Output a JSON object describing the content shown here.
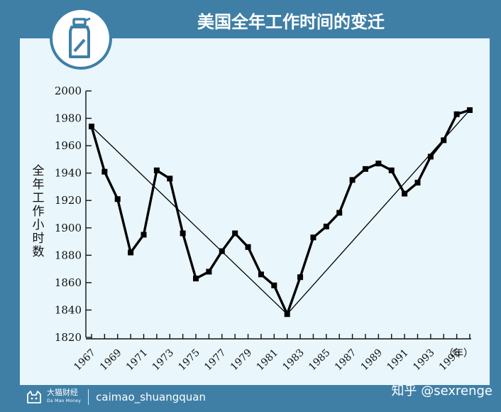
{
  "header": {
    "title": "美国全年工作时间的变迁",
    "badge_icon": "spray-bottle-icon"
  },
  "footer": {
    "brand_name": "大猫财经",
    "brand_sub": "Da Mao Money",
    "handle": "caimao_shuangquan",
    "watermark": "知乎 @sexrenge",
    "logo_icon": "cat-logo-icon"
  },
  "colors": {
    "frame": "#3f7fa6",
    "panel": "#e9f6fb",
    "line": "#000000"
  },
  "chart_data": {
    "type": "line",
    "title": "美国全年工作时间的变迁",
    "ylabel": "全年工作小时数",
    "xlabel": "（年）",
    "ylim": [
      1820,
      2000
    ],
    "yticks": [
      1820,
      1840,
      1860,
      1880,
      1900,
      1920,
      1940,
      1960,
      1980,
      2000
    ],
    "xlim": [
      1967,
      1996
    ],
    "xtick_labels": [
      "1967",
      "1969",
      "1971",
      "1973",
      "1975",
      "1977",
      "1979",
      "1981",
      "1983",
      "1985",
      "1987",
      "1989",
      "1991",
      "1993",
      "1995"
    ],
    "grid": false,
    "series": [
      {
        "x": [
          1967,
          1968,
          1969,
          1970,
          1971,
          1972,
          1973,
          1974,
          1975,
          1976,
          1977,
          1978,
          1979,
          1980,
          1981,
          1982,
          1983,
          1984,
          1985,
          1986,
          1987,
          1988,
          1989,
          1990,
          1991,
          1992,
          1993,
          1994,
          1995,
          1996
        ],
        "values": [
          1974,
          1941,
          1921,
          1882,
          1895,
          1942,
          1936,
          1896,
          1863,
          1868,
          1883,
          1896,
          1886,
          1866,
          1858,
          1837,
          1864,
          1893,
          1901,
          1911,
          1935,
          1943,
          1947,
          1942,
          1925,
          1933,
          1952,
          1964,
          1983,
          1986
        ]
      }
    ],
    "trend": [
      {
        "x": [
          1967,
          1982
        ],
        "values": [
          1974,
          1837
        ]
      },
      {
        "x": [
          1982,
          1996
        ],
        "values": [
          1837,
          1986
        ]
      }
    ]
  }
}
